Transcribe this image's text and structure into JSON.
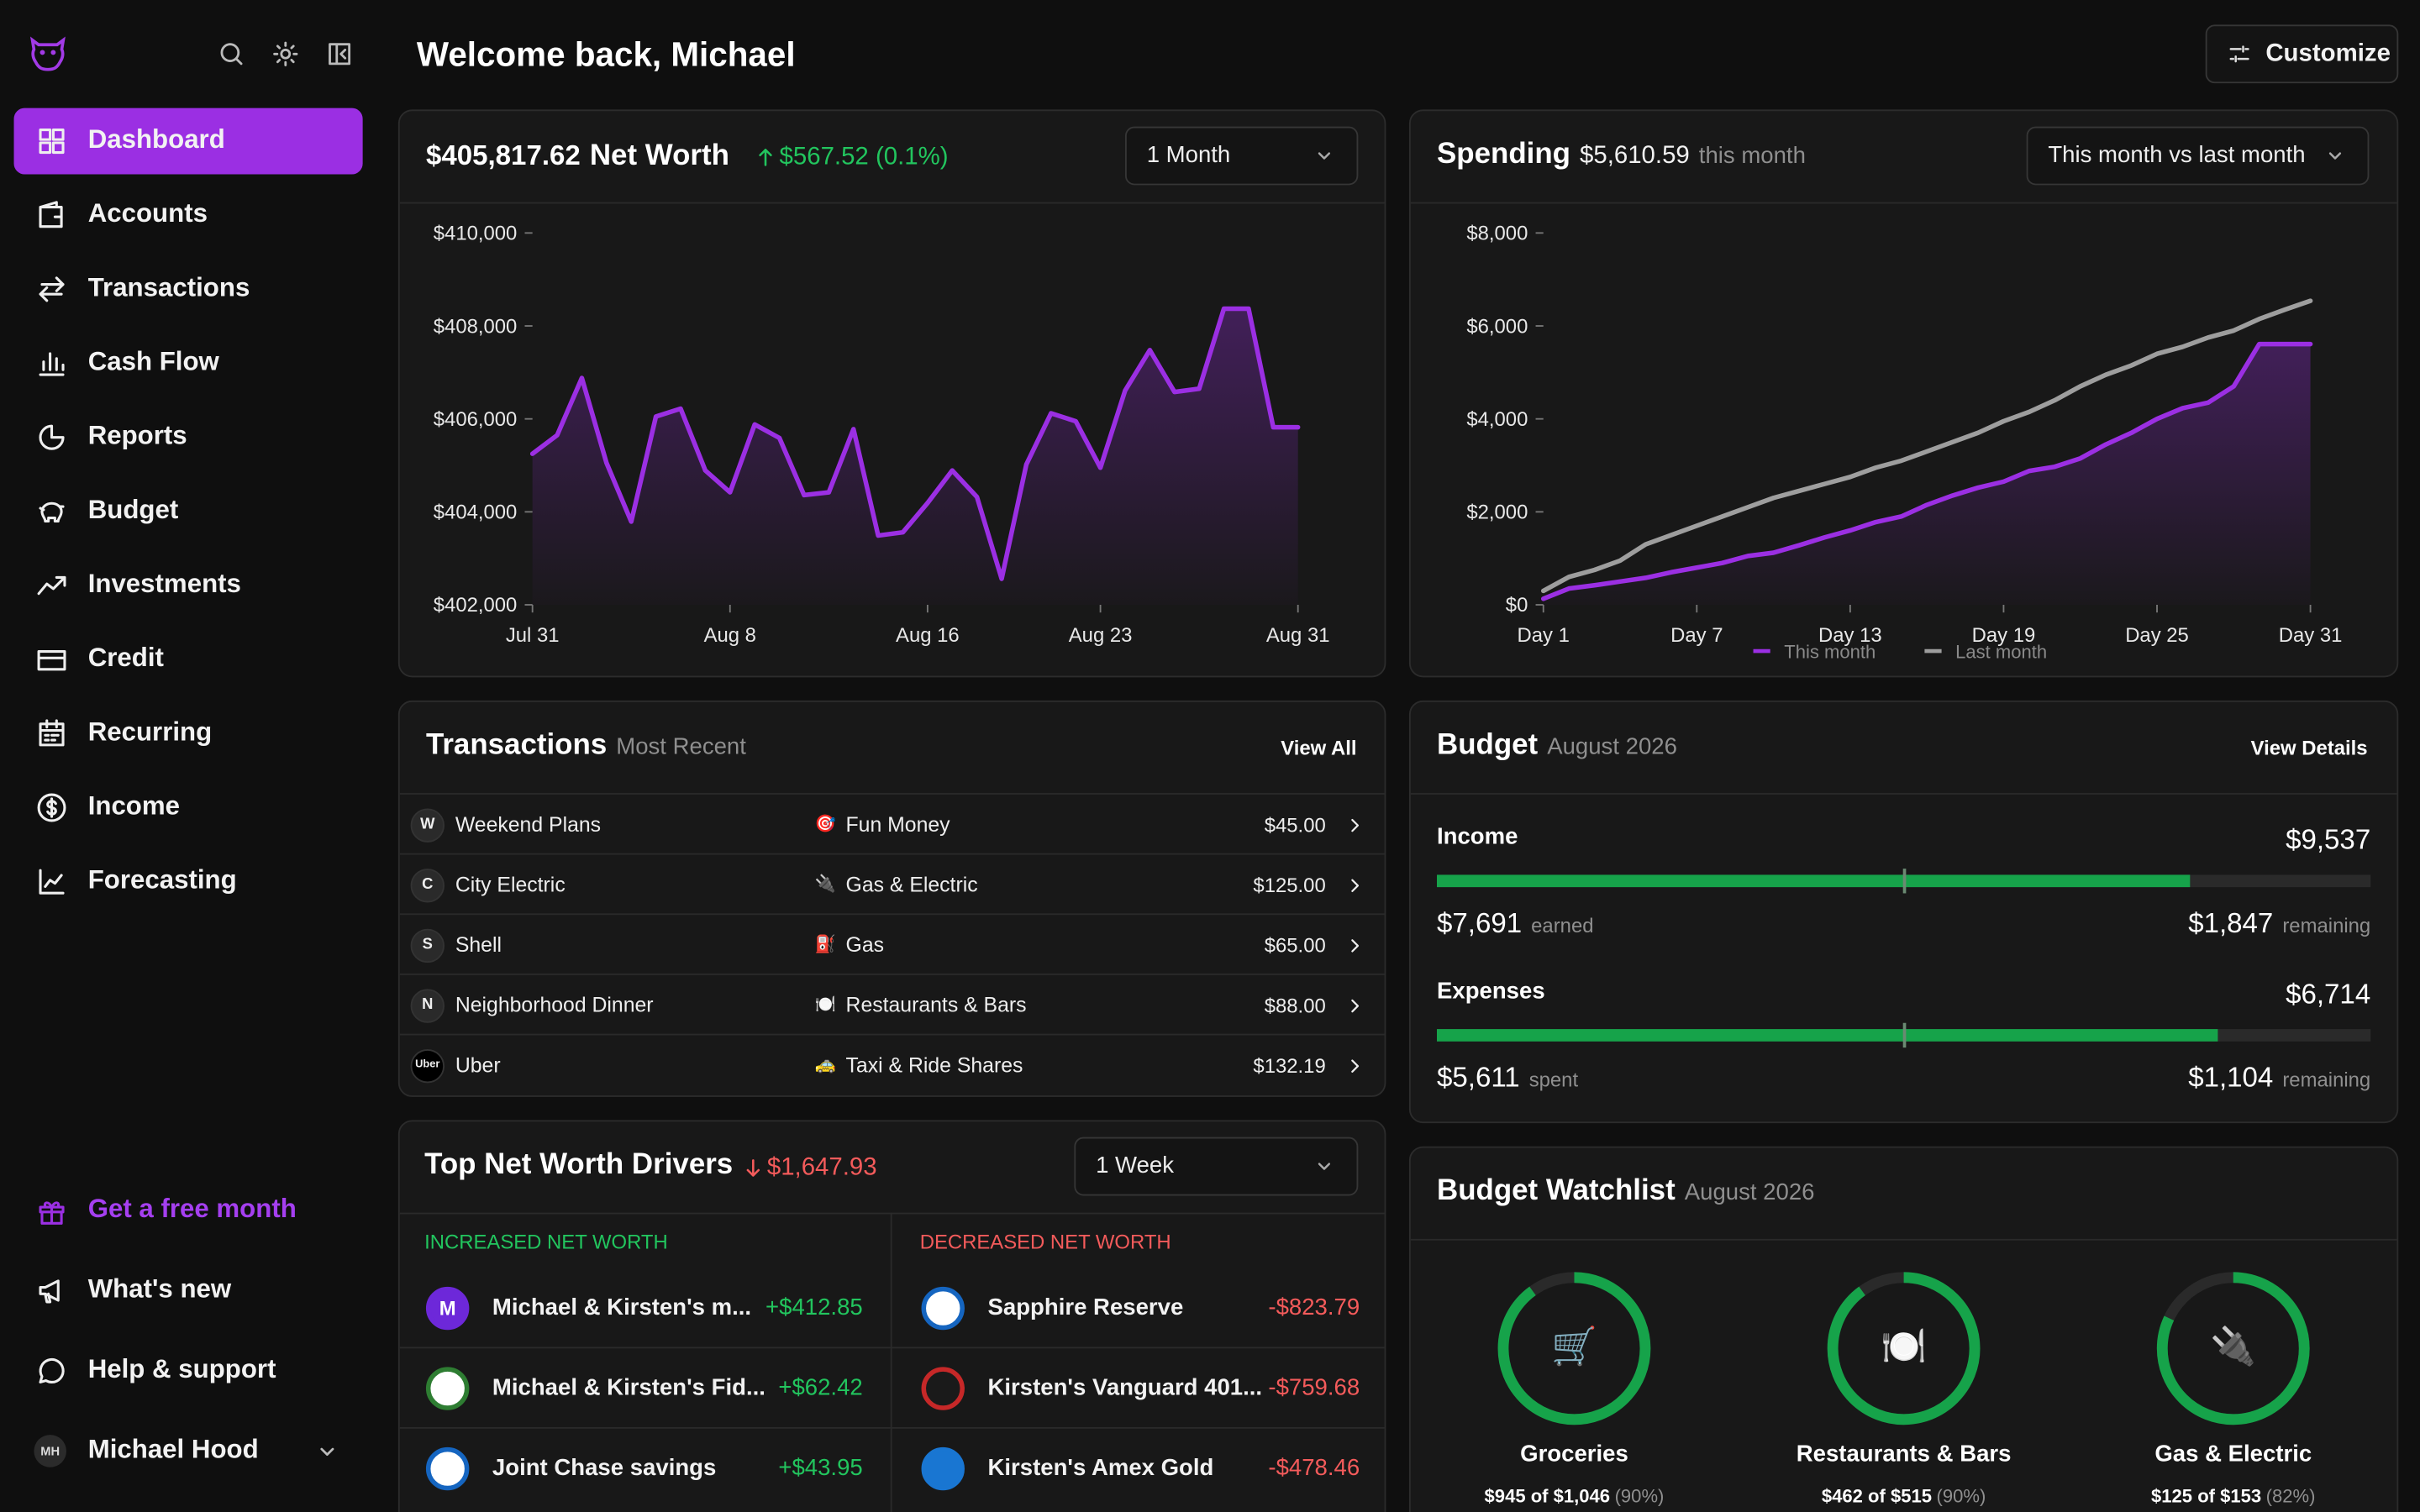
{
  "sidebar": {
    "nav": [
      "Dashboard",
      "Accounts",
      "Transactions",
      "Cash Flow",
      "Reports",
      "Budget",
      "Investments",
      "Credit",
      "Recurring",
      "Income",
      "Forecasting"
    ],
    "promo": "Get a free month",
    "links": [
      "What's new",
      "Help & support"
    ],
    "user": {
      "initials": "MH",
      "name": "Michael Hood"
    }
  },
  "header": {
    "title": "Welcome back, Michael",
    "button": "Customize"
  },
  "net_worth": {
    "amount": "$405,817.62",
    "title": "Net Worth",
    "change": "$567.52 (0.1%)",
    "range": "1 Month",
    "chart": {
      "type": "line",
      "color": "#9b2fe3",
      "categories": [
        "Jul 31",
        null,
        null,
        null,
        null,
        null,
        null,
        null,
        "Aug 8",
        null,
        null,
        null,
        null,
        null,
        null,
        null,
        "Aug 16",
        null,
        null,
        null,
        null,
        null,
        null,
        "Aug 23",
        null,
        null,
        null,
        null,
        null,
        null,
        null,
        "Aug 31"
      ],
      "values": [
        405250,
        405650,
        406880,
        405050,
        403790,
        406050,
        406220,
        404890,
        404420,
        405880,
        405590,
        404360,
        404420,
        405780,
        403490,
        403560,
        404190,
        404890,
        404320,
        402560,
        405020,
        406120,
        405950,
        404950,
        406610,
        407480,
        406580,
        406650,
        408370,
        408370,
        405820,
        405820
      ],
      "ylim": [
        402000,
        410000
      ],
      "yticks": [
        {
          "value": 402000,
          "label": "$402,000"
        },
        {
          "value": 404000,
          "label": "$404,000"
        },
        {
          "value": 406000,
          "label": "$406,000"
        },
        {
          "value": 408000,
          "label": "$408,000"
        },
        {
          "value": 410000,
          "label": "$410,000"
        }
      ]
    }
  },
  "spending": {
    "title": "Spending",
    "amount": "$5,610.59",
    "note": "this month",
    "range": "This month vs last month",
    "chart": {
      "type": "line",
      "categories": [
        "Day 1",
        null,
        null,
        null,
        null,
        null,
        "Day 7",
        null,
        null,
        null,
        null,
        null,
        "Day 13",
        null,
        null,
        null,
        null,
        null,
        "Day 19",
        null,
        null,
        null,
        null,
        null,
        "Day 25",
        null,
        null,
        null,
        null,
        null,
        "Day 31"
      ],
      "series": [
        {
          "name": "This month",
          "color": "#9b2fe3",
          "values": [
            130,
            350,
            420,
            500,
            580,
            700,
            800,
            900,
            1050,
            1120,
            1280,
            1450,
            1600,
            1780,
            1900,
            2150,
            2350,
            2520,
            2650,
            2880,
            2970,
            3150,
            3450,
            3700,
            4000,
            4230,
            4350,
            4700,
            5610,
            5610,
            5610
          ]
        },
        {
          "name": "Last month",
          "color": "#9e9e9e",
          "values": [
            300,
            600,
            750,
            950,
            1300,
            1500,
            1700,
            1900,
            2100,
            2300,
            2450,
            2600,
            2750,
            2950,
            3100,
            3300,
            3500,
            3700,
            3950,
            4150,
            4400,
            4700,
            4950,
            5150,
            5400,
            5550,
            5750,
            5900,
            6150,
            6350,
            6540
          ]
        }
      ],
      "ylim": [
        0,
        8000
      ],
      "yticks": [
        {
          "value": 0,
          "label": "$0"
        },
        {
          "value": 2000,
          "label": "$2,000"
        },
        {
          "value": 4000,
          "label": "$4,000"
        },
        {
          "value": 6000,
          "label": "$6,000"
        },
        {
          "value": 8000,
          "label": "$8,000"
        }
      ]
    }
  },
  "transactions": {
    "title": "Transactions",
    "subtitle": "Most Recent",
    "link": "View All",
    "rows": [
      {
        "initial": "W",
        "merchant": "Weekend Plans",
        "icon": "🎯",
        "category": "Fun Money",
        "amount": "$45.00"
      },
      {
        "initial": "C",
        "merchant": "City Electric",
        "icon": "🔌",
        "category": "Gas & Electric",
        "amount": "$125.00"
      },
      {
        "initial": "S",
        "merchant": "Shell",
        "icon": "⛽",
        "category": "Gas",
        "amount": "$65.00"
      },
      {
        "initial": "N",
        "merchant": "Neighborhood Dinner",
        "icon": "🍽️",
        "category": "Restaurants & Bars",
        "amount": "$88.00"
      },
      {
        "initial": "Uber",
        "merchant": "Uber",
        "icon": "🚕",
        "category": "Taxi & Ride Shares",
        "amount": "$132.19"
      }
    ]
  },
  "budget": {
    "title": "Budget",
    "subtitle": "August 2026",
    "link": "View Details",
    "groups": [
      {
        "name": "Income",
        "budget": {
          "value": 9537,
          "label": "$9,537"
        },
        "actual": {
          "value": 7691,
          "label": "$7,691"
        },
        "actual_note": "earned",
        "remaining": {
          "value": 1847,
          "label": "$1,847"
        },
        "remaining_note": "remaining"
      },
      {
        "name": "Expenses",
        "budget": {
          "value": 6714,
          "label": "$6,714"
        },
        "actual": {
          "value": 5611,
          "label": "$5,611"
        },
        "actual_note": "spent",
        "remaining": {
          "value": 1104,
          "label": "$1,104"
        },
        "remaining_note": "remaining"
      }
    ]
  },
  "drivers": {
    "title": "Top Net Worth Drivers",
    "change": "$1,647.93",
    "range": "1 Week",
    "increased_title": "INCREASED NET WORTH",
    "decreased_title": "DECREASED NET WORTH",
    "increased": [
      {
        "initial": "M",
        "name": "Michael & Kirsten's m...",
        "amount": "+$412.85"
      },
      {
        "name": "Michael & Kirsten's Fid...",
        "amount": "+$62.42"
      },
      {
        "name": "Joint Chase savings",
        "amount": "+$43.95"
      }
    ],
    "decreased": [
      {
        "name": "Sapphire Reserve",
        "amount": "-$823.79"
      },
      {
        "name": "Kirsten's Vanguard 401...",
        "amount": "-$759.68"
      },
      {
        "name": "Kirsten's Amex Gold",
        "amount": "-$478.46"
      }
    ]
  },
  "watchlist": {
    "title": "Budget Watchlist",
    "subtitle": "August 2026",
    "items": [
      {
        "icon": "🛒",
        "name": "Groceries",
        "amount": "$945 of $1,046",
        "percent": {
          "value": 90,
          "label": "(90%)"
        }
      },
      {
        "icon": "🍽️",
        "name": "Restaurants & Bars",
        "amount": "$462 of $515",
        "percent": {
          "value": 90,
          "label": "(90%)"
        }
      },
      {
        "icon": "🔌",
        "name": "Gas & Electric",
        "amount": "$125 of $153",
        "percent": {
          "value": 82,
          "label": "(82%)"
        }
      }
    ]
  }
}
